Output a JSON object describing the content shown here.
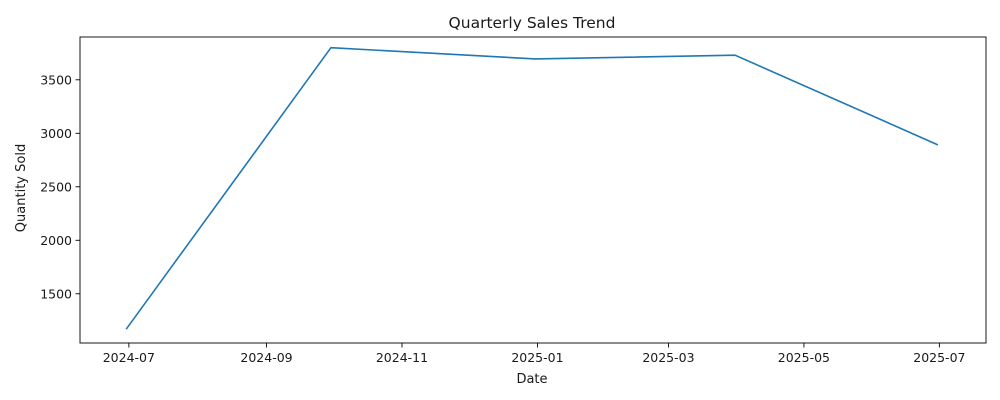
{
  "chart_data": {
    "type": "line",
    "title": "Quarterly Sales Trend",
    "xlabel": "Date",
    "ylabel": "Quantity Sold",
    "xlim": [
      "2024-06-09",
      "2025-07-22"
    ],
    "ylim": [
      1040,
      3900
    ],
    "x_ticks": [
      "2024-07",
      "2024-09",
      "2024-11",
      "2025-01",
      "2025-03",
      "2025-05",
      "2025-07"
    ],
    "y_ticks": [
      1500,
      2000,
      2500,
      3000,
      3500
    ],
    "grid": false,
    "series": [
      {
        "x": [
          "2024-06-30",
          "2024-09-30",
          "2024-12-31",
          "2025-03-31",
          "2025-06-30"
        ],
        "values": [
          1175,
          3800,
          3695,
          3730,
          2895
        ],
        "color": "#1f77b4"
      }
    ]
  }
}
